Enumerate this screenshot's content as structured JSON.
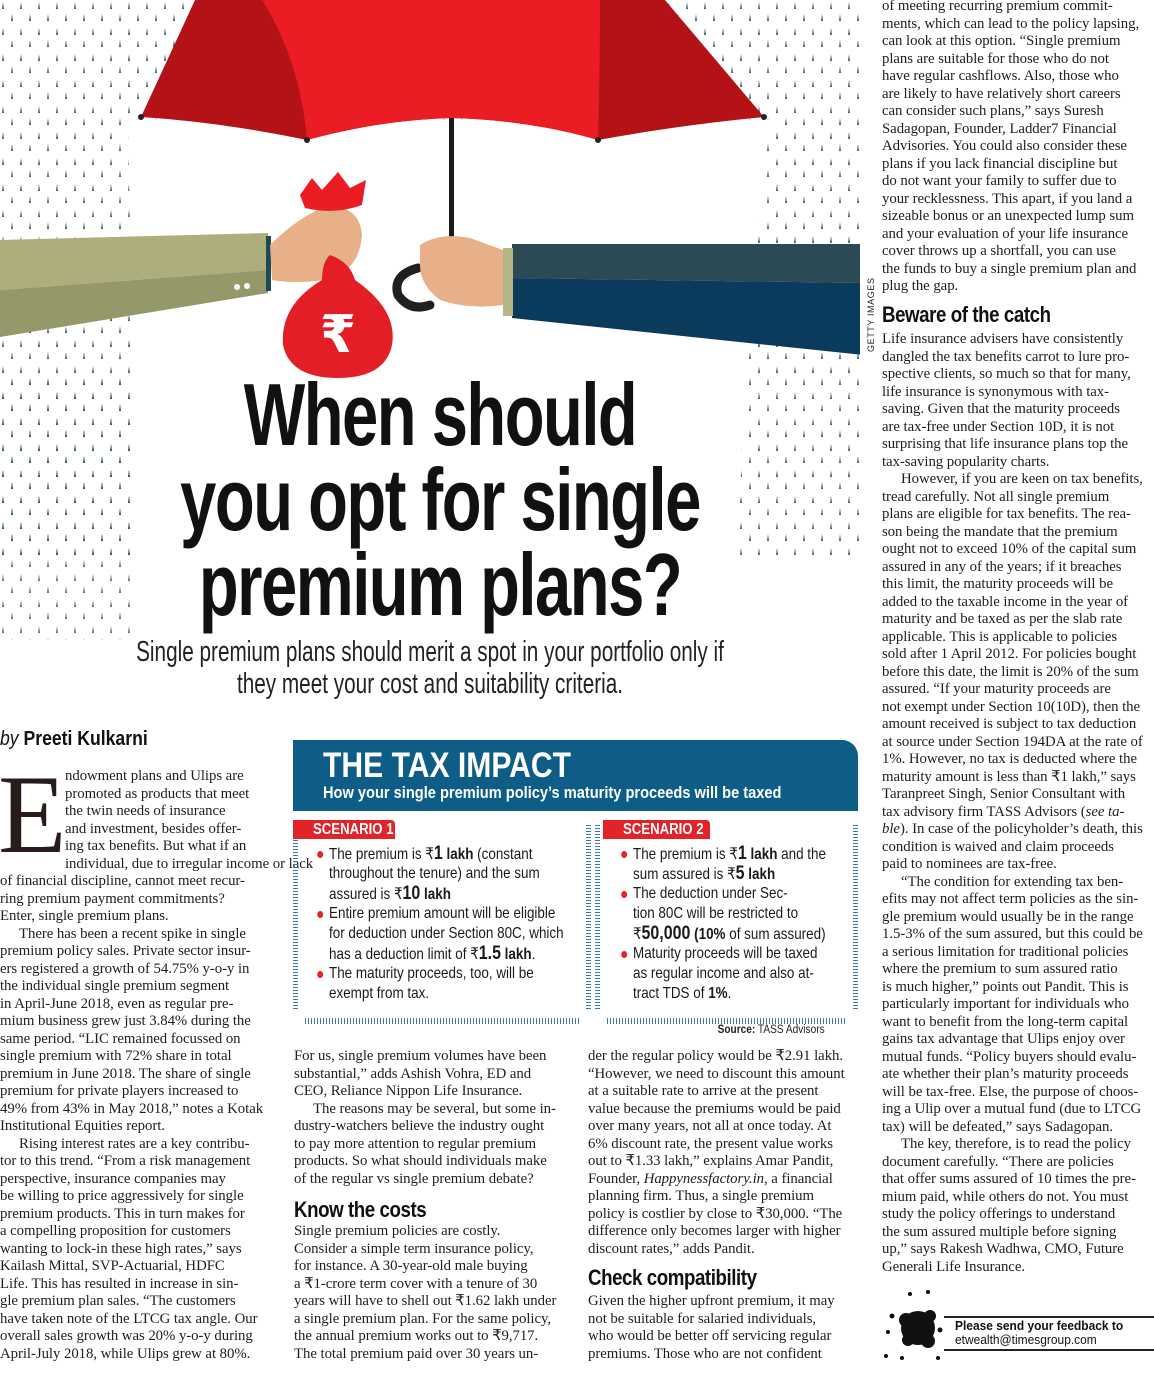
{
  "illustration": {
    "credit": "GETTY IMAGES",
    "icons": [
      "umbrella-icon",
      "money-bag-icon",
      "rupee-icon",
      "rain-icon"
    ],
    "colors": {
      "umbrella": "#e8202a",
      "umbrella_dark": "#b31217",
      "rain": "#1f4c5c",
      "left_sleeve": "#a9ab79",
      "right_sleeve": "#0b3b5c",
      "skin": "#e7b088"
    }
  },
  "headline": {
    "lines": [
      "When should",
      "you opt for single",
      "premium plans?"
    ],
    "deck": [
      "Single premium plans should merit a spot in your portfolio only if",
      "they meet your cost and suitability criteria."
    ]
  },
  "byline": {
    "prefix": "by",
    "author": "Preeti Kulkarni"
  },
  "article": {
    "dropcap": "E",
    "col1": [
      [
        "ndowment plans and Ulips are",
        "promoted as products that meet",
        "the twin needs of insurance",
        "and investment, besides offer-",
        "ing tax benefits. But what if an",
        "individual, due to irregular income or lack",
        "of financial discipline, cannot meet recur-",
        "ring premium payment commitments?",
        "Enter, single premium plans."
      ],
      [
        "There has been a recent spike in single",
        "premium policy sales. Private sector insur-",
        "ers registered a growth of 54.75% y-o-y in",
        "the individual single premium segment",
        "in April-June 2018, even as regular pre-",
        "mium business grew just 3.84% during the",
        "same period. “LIC remained focussed on",
        "single premium with 72% share in total",
        "premium in June 2018. The share of single",
        "premium for private players increased to",
        "49% from 43% in May 2018,” notes a Kotak",
        "Institutional Equities report."
      ],
      [
        "Rising interest rates are a key contribu-",
        "tor to this trend. “From a risk management",
        "perspective, insurance companies may",
        "be willing to price aggressively for single",
        "premium products. This in turn makes for",
        "a compelling proposition for customers",
        "wanting to lock-in these high rates,” says",
        "Kailash Mittal, SVP-Actuarial, HDFC",
        "Life.  This has resulted in increase in sin-",
        "gle premium plan sales. “The customers",
        "have taken note of the LTCG tax angle. Our",
        "overall sales growth was 20% y-o-y during",
        "April-July 2018, while Ulips grew at 80%."
      ]
    ],
    "col2a": [
      [
        "For us, single premium volumes have been",
        "substantial,” adds Ashish Vohra, ED and",
        "CEO, Reliance Nippon Life Insurance."
      ],
      [
        "The reasons may be several, but some in-",
        "dustry-watchers believe the industry ought",
        "to pay more attention to regular premium",
        "products. So what should individuals make",
        "of the regular vs single premium debate?"
      ]
    ],
    "heading_costs": "Know the costs",
    "col2b": [
      [
        "Single premium policies are costly.",
        "Consider a simple term insurance policy,",
        "for instance. A 30-year-old male buying",
        "a ₹1-crore term cover with a tenure of 30",
        "years will have to shell out ₹1.62 lakh under",
        "a single premium plan. For the same policy,",
        "the annual premium works out to ₹9,717.",
        "The total premium paid over 30 years un-"
      ]
    ],
    "col3a": [
      [
        "der the regular policy would be ₹2.91 lakh.",
        "“However, we need to discount this amount",
        "at a suitable rate to arrive at the present",
        "value because the premiums would be paid",
        "over many years, not all at once today. At",
        "6% discount rate, the present value works",
        "out to ₹1.33 lakh,” explains Amar Pandit,",
        [
          {
            "t": "Founder, "
          },
          {
            "t": "Happynessfactory.in",
            "s": "i"
          },
          {
            "t": ", a financial"
          }
        ],
        "planning firm. Thus, a single premium",
        "policy is costlier by close to ₹30,000. “The",
        "difference only becomes larger with higher",
        "discount rates,” adds Pandit."
      ]
    ],
    "heading_compat": "Check compatibility",
    "col3b": [
      [
        "Given the higher upfront premium, it may",
        "not be suitable for salaried individuals,",
        "who would be better off servicing regular",
        "premiums. Those who are not confident"
      ]
    ],
    "col4a": [
      [
        "of meeting recurring premium commit-",
        "ments, which can lead to the policy lapsing,",
        "can look at this option. “Single premium",
        "plans are suitable for those who do not",
        "have regular cashflows. Also, those who",
        "are likely to have relatively short careers",
        "can consider such plans,” says Suresh",
        "Sadagopan, Founder, Ladder7 Financial",
        "Advisories. You could also consider these",
        "plans if you lack financial discipline but",
        "do not want your family to suffer due to",
        "your recklessness. This apart, if you land a",
        "sizeable bonus or an unexpected lump sum",
        "and your evaluation of your life insurance",
        "cover throws up a shortfall, you can use",
        "the funds to buy a single premium plan and",
        "plug the gap."
      ]
    ],
    "heading_catch": "Beware of the catch",
    "col4b": [
      [
        "Life insurance advisers have consistently",
        "dangled the tax benefits carrot to lure pro-",
        "spective clients, so much so that for many,",
        "life insurance is synonymous with tax-",
        "saving. Given that the maturity proceeds",
        "are tax-free under Section 10D, it is not",
        "surprising that life insurance plans top the",
        "tax-saving popularity charts."
      ],
      [
        "However, if you are keen on tax benefits,",
        "tread carefully. Not all single premium",
        "plans are eligible for tax benefits.  The rea-",
        "son being the mandate that the premium",
        "ought not to exceed 10% of the capital sum",
        "assured in any of the years; if it breaches",
        "this limit, the maturity proceeds will be",
        "added to the taxable income in the year of",
        "maturity and be taxed as per the slab rate",
        "applicable. This is applicable to policies",
        "sold after 1 April 2012.  For policies bought",
        "before this date, the limit is 20% of the sum",
        "assured. “If your maturity proceeds are",
        "not exempt under Section 10(10D), then the",
        "amount received is subject to tax deduction",
        "at source under Section 194DA at the rate of",
        "1%. However, no tax is deducted where the",
        "maturity amount is less than ₹1 lakh,” says",
        "Taranpreet Singh, Senior Consultant with",
        [
          {
            "t": "tax advisory firm TASS Advisors ("
          },
          {
            "t": "see ta-",
            "s": "i"
          }
        ],
        [
          {
            "t": "ble",
            "s": "i"
          },
          {
            "t": "). In case of the policyholder’s death, this"
          }
        ],
        "condition is waived and claim proceeds",
        "paid to nominees are tax-free."
      ],
      [
        "“The condition for extending tax ben-",
        "efits may not affect term policies as the sin-",
        "gle premium would usually be in the range",
        "1.5-3% of the sum assured, but this could be",
        "a serious limitation for traditional policies",
        "where the premium to sum assured ratio",
        "is much higher,” points out Pandit. This is",
        "particularly important for individuals who",
        "want to benefit from the long-term capital",
        "gains tax advantage that Ulips enjoy over",
        "mutual funds. “Policy buyers should evalu-",
        "ate whether their plan’s maturity proceeds",
        "will be tax-free. Else, the purpose of choos-",
        "ing a Ulip over a mutual fund (due to LTCG",
        "tax) will be defeated,” says Sadagopan."
      ],
      [
        "The key, therefore, is to read the policy",
        "document carefully. “There are policies",
        "that offer sums assured of 10 times the pre-",
        "mium paid, while others do not. You must",
        "study the policy offerings to understand",
        "the sum assured multiple before signing",
        "up,” says Rakesh Wadhwa, CMO, Future",
        "Generali Life Insurance."
      ]
    ]
  },
  "tax_box": {
    "title": "THE TAX IMPACT",
    "subtitle": "How your single premium policy’s maturity proceeds will be taxed",
    "colors": {
      "header": "#0d5d86",
      "label": "#e3232a",
      "border": "#3d7aaa"
    },
    "scenario1": {
      "label": "SCENARIO 1",
      "bullets": [
        [
          [
            {
              "t": "The premium is ₹"
            },
            {
              "t": "1",
              "s": "big"
            },
            {
              "t": " lakh",
              "s": "b"
            },
            {
              "t": " (constant"
            }
          ],
          "throughout the tenure) and the sum",
          [
            {
              "t": "assured is ₹"
            },
            {
              "t": "10",
              "s": "big"
            },
            {
              "t": " lakh",
              "s": "b"
            }
          ]
        ],
        [
          "Entire premium amount will be eligible",
          "for deduction under Section 80C, which",
          [
            {
              "t": "has a deduction limit of ₹"
            },
            {
              "t": "1.5",
              "s": "big"
            },
            {
              "t": " lakh",
              "s": "b"
            },
            {
              "t": "."
            }
          ]
        ],
        [
          "The maturity proceeds, too, will be",
          "exempt from tax."
        ]
      ]
    },
    "scenario2": {
      "label": "SCENARIO 2",
      "bullets": [
        [
          [
            {
              "t": "The premium is ₹"
            },
            {
              "t": "1",
              "s": "big"
            },
            {
              "t": " lakh",
              "s": "b"
            },
            {
              "t": " and the"
            }
          ],
          [
            {
              "t": "sum assured is ₹"
            },
            {
              "t": "5",
              "s": "big"
            },
            {
              "t": " lakh",
              "s": "b"
            }
          ]
        ],
        [
          "The deduction under Sec-",
          "tion 80C will be restricted to",
          [
            {
              "t": "₹"
            },
            {
              "t": "50,000",
              "s": "big"
            },
            {
              "t": " (10%",
              "s": "b"
            },
            {
              "t": " of sum assured)"
            }
          ]
        ],
        [
          "Maturity proceeds will be taxed",
          "as regular income and also at-",
          [
            {
              "t": "tract TDS of "
            },
            {
              "t": "1%",
              "s": "b"
            },
            {
              "t": "."
            }
          ]
        ]
      ]
    },
    "source_label": "Source:",
    "source": "TASS Advisors"
  },
  "feedback": {
    "line1": "Please send your feedback to",
    "email": "etwealth@timesgroup.com",
    "icon": "ink-splat-icon"
  }
}
